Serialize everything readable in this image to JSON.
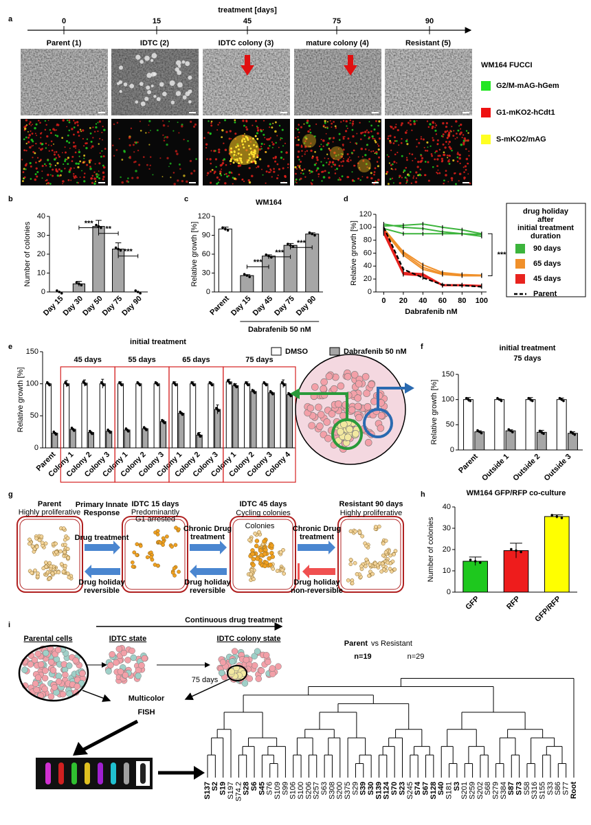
{
  "panel_labels": [
    "a",
    "b",
    "c",
    "d",
    "e",
    "f",
    "g",
    "h",
    "i"
  ],
  "panel_a": {
    "timeline_label": "treatment [days]",
    "timeline_ticks": [
      0,
      15,
      45,
      75,
      90
    ],
    "stages": [
      "Parent (1)",
      "IDTC (2)",
      "IDTC colony  (3)",
      "mature colony (4)",
      "Resistant (5)"
    ],
    "legend_title": "WM164 FUCCI",
    "legend": [
      {
        "label": "G2/M-mAG-hGem",
        "color": "#22e622"
      },
      {
        "label": "G1-mKO2-hCdt1",
        "color": "#ee1111"
      },
      {
        "label": "S-mKO2/mAG",
        "color": "#ffff22"
      }
    ]
  },
  "chart_data": [
    {
      "type": "bar",
      "ylabel": "Number of colonies",
      "categories": [
        "Day 15",
        "Day 30",
        "Day 50",
        "Day 75",
        "Day 90"
      ],
      "values": [
        0,
        4.3,
        34.7,
        22.7,
        0
      ],
      "errors": [
        0,
        1.3,
        3.2,
        3.3,
        0
      ],
      "color": "#a6a6a6",
      "ylim": [
        0,
        40
      ],
      "yticks": [
        0,
        10,
        20,
        30,
        40
      ],
      "significance": [
        "***",
        "**",
        "***"
      ]
    },
    {
      "type": "bar",
      "title": "WM164",
      "ylabel": "Relative growth [%]",
      "xlabel": "Dabrafenib 50 nM",
      "categories": [
        "Parent",
        "Day 15",
        "Day 45",
        "Day 75",
        "Day 90"
      ],
      "values": [
        100,
        26,
        57,
        74,
        92
      ],
      "errors": [
        3,
        1.5,
        2,
        3,
        2
      ],
      "colors": [
        "#ffffff",
        "#a6a6a6",
        "#a6a6a6",
        "#a6a6a6",
        "#a6a6a6"
      ],
      "ylim": [
        0,
        120
      ],
      "yticks": [
        0,
        30,
        60,
        90,
        120
      ],
      "significance": [
        "***",
        "***",
        "***"
      ]
    },
    {
      "type": "line",
      "ylabel": "Relative growth [%]",
      "xlabel": "Dabrafenib nM",
      "x": [
        0,
        20,
        40,
        60,
        80,
        100
      ],
      "xlim": [
        -8,
        105
      ],
      "xticks": [
        0,
        20,
        40,
        60,
        80,
        100
      ],
      "ylim": [
        0,
        120
      ],
      "yticks": [
        0,
        20,
        40,
        60,
        80,
        100,
        120
      ],
      "legend_title": [
        "drug holiday",
        "after",
        "initial treatment",
        "duration"
      ],
      "significance": [
        "***"
      ],
      "series": [
        {
          "name": "90 days",
          "color": "#3cb43c",
          "replicates": [
            [
              102,
              103,
              105,
              100,
              96,
              90
            ],
            [
              105,
              100,
              98,
              93,
              90,
              89
            ],
            [
              98,
              90,
              90,
              90,
              90,
              86
            ]
          ]
        },
        {
          "name": "65 days",
          "color": "#f0902a",
          "replicates": [
            [
              98,
              62,
              42,
              30,
              27,
              26
            ],
            [
              96,
              60,
              38,
              28,
              26,
              25
            ],
            [
              95,
              57,
              35,
              27,
              25,
              25
            ]
          ]
        },
        {
          "name": "45 days",
          "color": "#e8231e",
          "replicates": [
            [
              97,
              30,
              28,
              11,
              11,
              10
            ],
            [
              92,
              28,
              26,
              10,
              10,
              9
            ],
            [
              90,
              27,
              25,
              10,
              10,
              9
            ]
          ]
        },
        {
          "name": "Parent",
          "color": "#000000",
          "dashed": true,
          "values": [
            100,
            35,
            22,
            11,
            10,
            8
          ]
        }
      ]
    },
    {
      "type": "bar",
      "title": "initial treatment",
      "ylabel": "Relative growth [%]",
      "categories": [
        "Parent",
        "Colony 1",
        "Colony 2",
        "Colony 3",
        "Colony 1",
        "Colony 2",
        "Colony 3",
        "Colony 1",
        "Colony 2",
        "Colony 3",
        "Colony 1",
        "Colony 2",
        "Colony 3",
        "Colony 4"
      ],
      "groups": [
        "45 days",
        "55 days",
        "65 days",
        "75 days"
      ],
      "ylim": [
        0,
        150
      ],
      "yticks": [
        0,
        50,
        100,
        150
      ],
      "series": [
        {
          "name": "DMSO",
          "color": "#ffffff",
          "values": [
            100,
            100,
            101,
            100,
            100,
            100,
            100,
            100,
            100,
            100,
            103,
            100,
            100,
            100
          ],
          "errors": [
            1,
            5,
            5,
            7,
            3,
            1,
            2,
            3,
            3,
            2,
            4,
            3,
            1,
            6
          ]
        },
        {
          "name": "Dabrafenib 50 nM",
          "color": "#a6a6a6",
          "values": [
            23,
            29,
            24,
            26,
            28,
            30,
            41,
            54,
            20,
            60,
            97,
            88,
            86,
            83
          ],
          "errors": [
            1,
            1,
            1,
            1,
            1,
            1,
            2,
            1,
            4,
            7,
            3,
            2,
            1,
            2
          ]
        }
      ]
    },
    {
      "type": "bar",
      "title": [
        "initial treatment",
        "75 days"
      ],
      "ylabel": "Relative growth [%]",
      "categories": [
        "Parent",
        "Outside 1",
        "Outside 2",
        "Outside 3"
      ],
      "ylim": [
        0,
        150
      ],
      "yticks": [
        0,
        50,
        100,
        150
      ],
      "series": [
        {
          "name": "DMSO",
          "color": "#ffffff",
          "values": [
            100,
            100,
            100,
            100
          ],
          "errors": [
            4,
            1,
            4,
            3
          ]
        },
        {
          "name": "Dabrafenib 50 nM",
          "color": "#a6a6a6",
          "values": [
            36,
            38,
            35,
            33
          ],
          "errors": [
            2,
            2,
            4,
            3
          ]
        }
      ]
    },
    {
      "type": "bar",
      "title": "WM164 GFP/RFP co-culture",
      "ylabel": "Number of colonies",
      "categories": [
        "GFP",
        "RFP",
        "GFP/RFP"
      ],
      "values": [
        14.5,
        19.5,
        35.5
      ],
      "errors": [
        2,
        3.5,
        0.8
      ],
      "colors": [
        "#1ec81e",
        "#ee1c1c",
        "#ffff00"
      ],
      "ylim": [
        0,
        40
      ],
      "yticks": [
        0,
        10,
        20,
        30,
        40
      ]
    }
  ],
  "panel_g": {
    "texts": [
      "Parent",
      "Highly proliferative",
      "Primary Innate",
      "Response",
      "Drug  treatment",
      "Drug holiday",
      "reversible",
      "IDTC 15 days",
      "Predominantly",
      "G1 arrested",
      "Chronic Drug",
      "treatment",
      "Drug holiday",
      "reversible",
      "IDTC 45 days",
      "Cycling colonies",
      "Colonies",
      "Chronic Drug",
      "treatment",
      "Drug holiday",
      "non-reversible",
      "Resistant 90 days",
      "Highly proliferative"
    ]
  },
  "panel_i": {
    "arrow_label": "Continuous drug treatment",
    "states": [
      "Parental cells",
      "IDTC state",
      "IDTC colony state"
    ],
    "time_label": "75 days",
    "method": [
      "Multicolor",
      "FISH"
    ],
    "comparison": [
      "Parent",
      "vs Resistant"
    ],
    "counts": [
      "n=19",
      "n=29"
    ],
    "leaves": [
      {
        "label": "S137",
        "bold": true
      },
      {
        "label": "S2",
        "bold": true
      },
      {
        "label": "S19",
        "bold": true
      },
      {
        "label": "S197"
      },
      {
        "label": "S74.2"
      },
      {
        "label": "S28",
        "bold": true
      },
      {
        "label": "S6",
        "bold": true
      },
      {
        "label": "S45",
        "bold": true
      },
      {
        "label": "S76"
      },
      {
        "label": "S109"
      },
      {
        "label": "S99"
      },
      {
        "label": "S106"
      },
      {
        "label": "S100"
      },
      {
        "label": "S206"
      },
      {
        "label": "S257"
      },
      {
        "label": "S63"
      },
      {
        "label": "S308"
      },
      {
        "label": "S200"
      },
      {
        "label": "S375"
      },
      {
        "label": "S29"
      },
      {
        "label": "S39",
        "bold": true
      },
      {
        "label": "S30",
        "bold": true
      },
      {
        "label": "S139",
        "bold": true
      },
      {
        "label": "S124",
        "bold": true
      },
      {
        "label": "S70",
        "bold": true
      },
      {
        "label": "S23",
        "bold": true
      },
      {
        "label": "S245"
      },
      {
        "label": "S74",
        "bold": true
      },
      {
        "label": "S67",
        "bold": true
      },
      {
        "label": "S128",
        "bold": true
      },
      {
        "label": "S40",
        "bold": true
      },
      {
        "label": "S181"
      },
      {
        "label": "S3",
        "bold": true
      },
      {
        "label": "S201"
      },
      {
        "label": "S259"
      },
      {
        "label": "S202"
      },
      {
        "label": "S68"
      },
      {
        "label": "S279"
      },
      {
        "label": "S384"
      },
      {
        "label": "S87",
        "bold": true
      },
      {
        "label": "S73",
        "bold": true
      },
      {
        "label": "S58"
      },
      {
        "label": "S316"
      },
      {
        "label": "S155"
      },
      {
        "label": "S33"
      },
      {
        "label": "S86"
      },
      {
        "label": "S77"
      },
      {
        "label": "Root",
        "bold": true
      }
    ]
  }
}
